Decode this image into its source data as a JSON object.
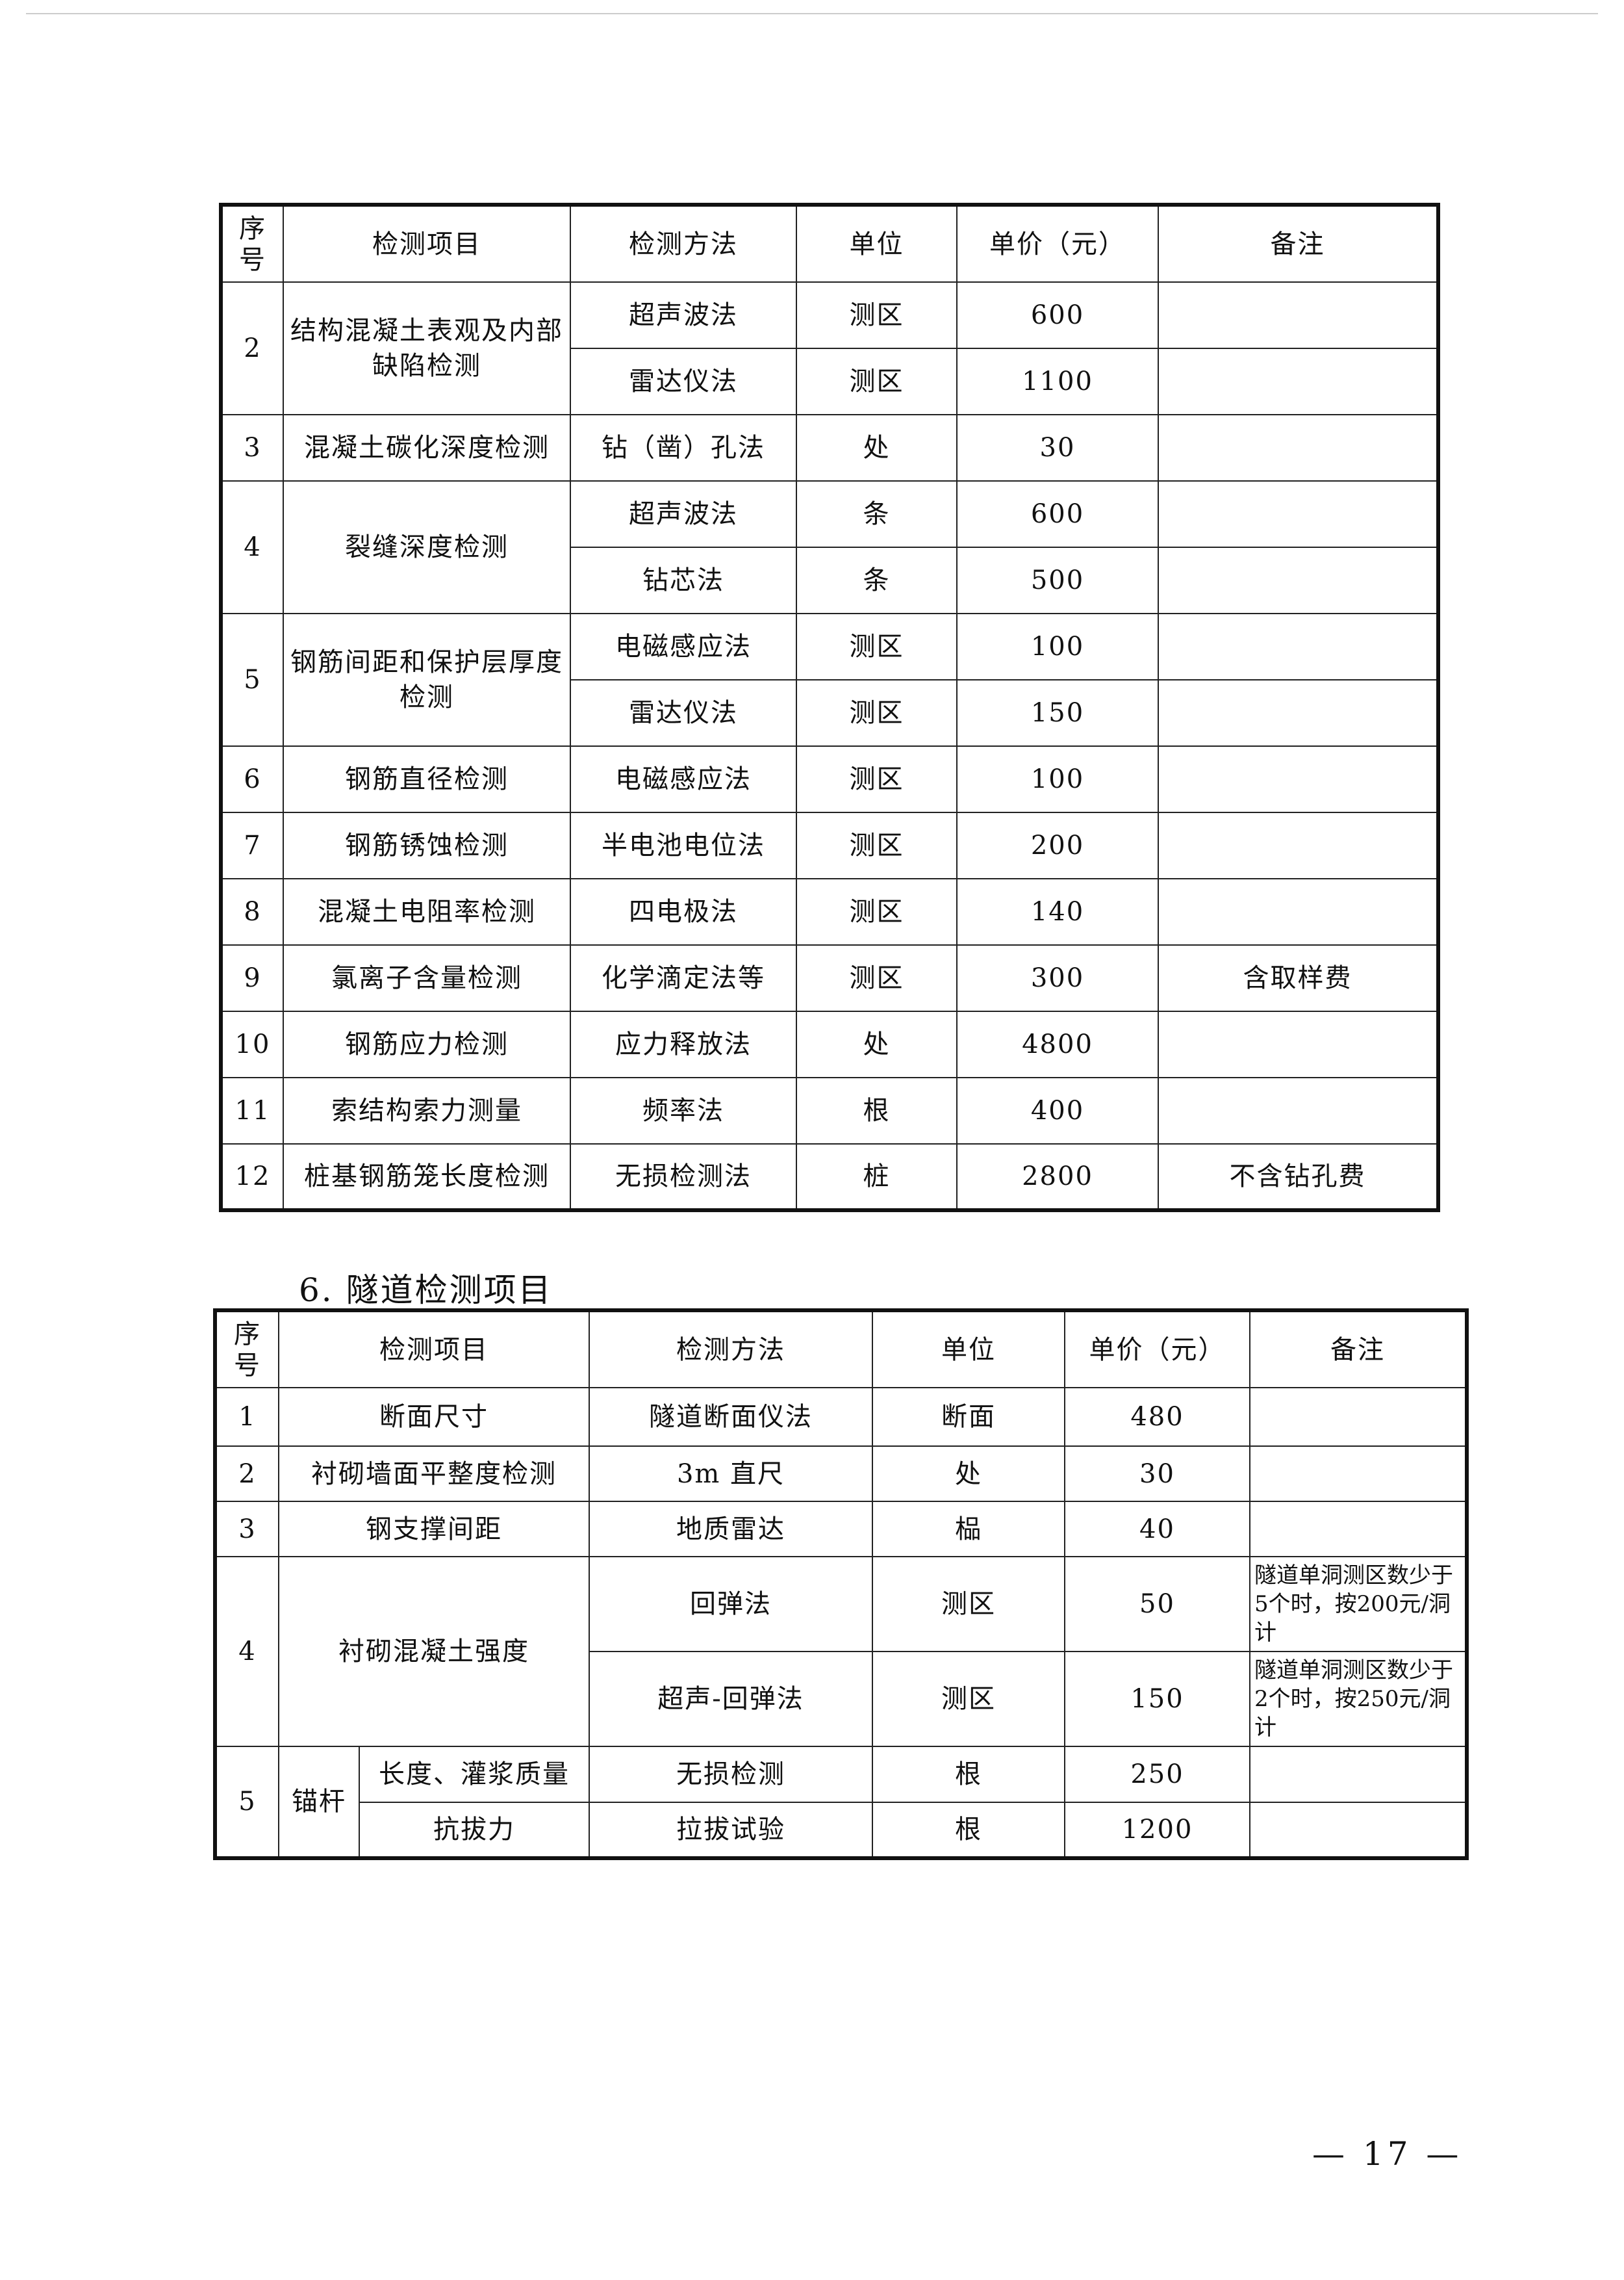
{
  "table1": {
    "headers": [
      "序号",
      "检测项目",
      "检测方法",
      "单位",
      "单价（元）",
      "备注"
    ],
    "items": [
      {
        "no": "2",
        "name": "结构混凝土表观及内部缺陷检测",
        "rows": [
          [
            "超声波法",
            "测区",
            "600",
            ""
          ],
          [
            "雷达仪法",
            "测区",
            "1100",
            ""
          ]
        ]
      },
      {
        "no": "3",
        "name": "混凝土碳化深度检测",
        "rows": [
          [
            "钻（凿）孔法",
            "处",
            "30",
            ""
          ]
        ]
      },
      {
        "no": "4",
        "name": "裂缝深度检测",
        "rows": [
          [
            "超声波法",
            "条",
            "600",
            ""
          ],
          [
            "钻芯法",
            "条",
            "500",
            ""
          ]
        ]
      },
      {
        "no": "5",
        "name": "钢筋间距和保护层厚度检测",
        "rows": [
          [
            "电磁感应法",
            "测区",
            "100",
            ""
          ],
          [
            "雷达仪法",
            "测区",
            "150",
            ""
          ]
        ]
      },
      {
        "no": "6",
        "name": "钢筋直径检测",
        "rows": [
          [
            "电磁感应法",
            "测区",
            "100",
            ""
          ]
        ]
      },
      {
        "no": "7",
        "name": "钢筋锈蚀检测",
        "rows": [
          [
            "半电池电位法",
            "测区",
            "200",
            ""
          ]
        ]
      },
      {
        "no": "8",
        "name": "混凝土电阻率检测",
        "rows": [
          [
            "四电极法",
            "测区",
            "140",
            ""
          ]
        ]
      },
      {
        "no": "9",
        "name": "氯离子含量检测",
        "rows": [
          [
            "化学滴定法等",
            "测区",
            "300",
            "含取样费"
          ]
        ]
      },
      {
        "no": "10",
        "name": "钢筋应力检测",
        "rows": [
          [
            "应力释放法",
            "处",
            "4800",
            ""
          ]
        ]
      },
      {
        "no": "11",
        "name": "索结构索力测量",
        "rows": [
          [
            "频率法",
            "根",
            "400",
            ""
          ]
        ]
      },
      {
        "no": "12",
        "name": "桩基钢筋笼长度检测",
        "rows": [
          [
            "无损检测法",
            "桩",
            "2800",
            "不含钻孔费"
          ]
        ]
      }
    ]
  },
  "section_title": "6. 隧道检测项目",
  "table2": {
    "headers": [
      "序号",
      "检测项目",
      "检测方法",
      "单位",
      "单价（元）",
      "备注"
    ],
    "items": [
      {
        "no": "1",
        "name": "断面尺寸",
        "rows": [
          [
            "隧道断面仪法",
            "断面",
            "480",
            ""
          ]
        ]
      },
      {
        "no": "2",
        "name": "衬砌墙面平整度检测",
        "rows": [
          [
            "3m 直尺",
            "处",
            "30",
            ""
          ]
        ]
      },
      {
        "no": "3",
        "name": "钢支撑间距",
        "rows": [
          [
            "地质雷达",
            "榀",
            "40",
            ""
          ]
        ]
      },
      {
        "no": "4",
        "name": "衬砌混凝土强度",
        "rows": [
          [
            "回弹法",
            "测区",
            "50",
            "隧道单洞测区数少于5个时，按200元/洞计"
          ],
          [
            "超声-回弹法",
            "测区",
            "150",
            "隧道单洞测区数少于2个时，按250元/洞计"
          ]
        ]
      },
      {
        "no": "5",
        "group": "锚杆",
        "subrows": [
          [
            "长度、灌浆质量",
            "无损检测",
            "根",
            "250",
            ""
          ],
          [
            "抗拔力",
            "拉拔试验",
            "根",
            "1200",
            ""
          ]
        ]
      }
    ]
  },
  "page_number": "— 17 —"
}
